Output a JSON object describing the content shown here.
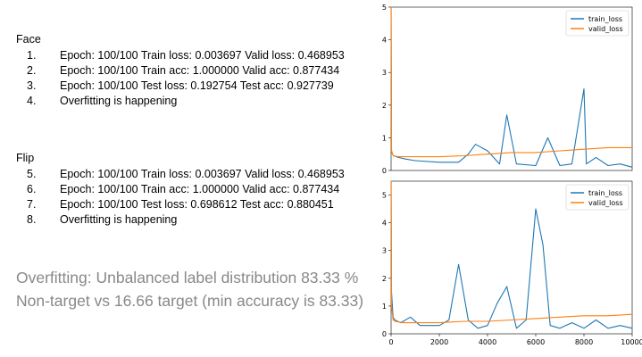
{
  "face": {
    "title": "Face",
    "items": [
      {
        "num": "1.",
        "text": "Epoch: 100/100 Train loss: 0.003697 Valid loss: 0.468953"
      },
      {
        "num": "2.",
        "text": "Epoch: 100/100 Train acc: 1.000000 Valid acc: 0.877434"
      },
      {
        "num": "3.",
        "text": "Epoch: 100/100 Test loss: 0.192754 Test acc: 0.927739"
      },
      {
        "num": "4.",
        "text": "Overfitting is happening"
      }
    ]
  },
  "flip": {
    "title": "Flip",
    "items": [
      {
        "num": "5.",
        "text": "Epoch: 100/100 Train loss: 0.003697 Valid loss: 0.468953"
      },
      {
        "num": "6.",
        "text": "Epoch: 100/100 Train acc: 1.000000 Valid acc: 0.877434"
      },
      {
        "num": "7.",
        "text": "Epoch: 100/100 Test loss: 0.698612 Test acc: 0.880451"
      },
      {
        "num": "8.",
        "text": "Overfitting is happening"
      }
    ]
  },
  "conclusion": "Overfitting: Unbalanced label distribution 83.33 % Non-target vs 16.66 target (min accuracy is 83.33)",
  "chart_data": [
    {
      "type": "line",
      "title": "",
      "xlabel": "",
      "ylabel": "",
      "xlim": [
        0,
        10000
      ],
      "ylim": [
        0,
        5
      ],
      "yticks": [
        0,
        1,
        2,
        3,
        4,
        5
      ],
      "xticks": [],
      "legend": "top-right",
      "grid": false,
      "series": [
        {
          "name": "train_loss",
          "color": "#1f77b4",
          "x": [
            0,
            20,
            60,
            100,
            300,
            600,
            1000,
            2000,
            2800,
            3200,
            3500,
            4000,
            4500,
            4800,
            5200,
            6000,
            6500,
            7000,
            7500,
            8000,
            8100,
            8500,
            9000,
            9500,
            10000
          ],
          "y": [
            5.0,
            0.6,
            0.5,
            0.45,
            0.4,
            0.35,
            0.3,
            0.25,
            0.25,
            0.5,
            0.8,
            0.6,
            0.2,
            1.7,
            0.2,
            0.15,
            1.0,
            0.15,
            0.2,
            2.5,
            0.2,
            0.4,
            0.15,
            0.2,
            0.1
          ]
        },
        {
          "name": "valid_loss",
          "color": "#ff7f0e",
          "x": [
            0,
            20,
            60,
            100,
            300,
            600,
            1000,
            2000,
            3000,
            4000,
            5000,
            6000,
            7000,
            8000,
            9000,
            10000
          ],
          "y": [
            5.0,
            0.6,
            0.5,
            0.45,
            0.42,
            0.42,
            0.42,
            0.42,
            0.45,
            0.5,
            0.55,
            0.55,
            0.6,
            0.65,
            0.7,
            0.7
          ]
        }
      ]
    },
    {
      "type": "line",
      "title": "",
      "xlabel": "",
      "ylabel": "",
      "xlim": [
        0,
        10000
      ],
      "ylim": [
        0,
        5.5
      ],
      "yticks": [
        0,
        1,
        2,
        3,
        4,
        5
      ],
      "xticks": [
        0,
        2000,
        4000,
        6000,
        8000,
        10000
      ],
      "legend": "top-right",
      "grid": false,
      "series": [
        {
          "name": "train_loss",
          "color": "#1f77b4",
          "x": [
            0,
            20,
            80,
            150,
            400,
            800,
            1200,
            2000,
            2400,
            2800,
            3200,
            3600,
            4000,
            4400,
            4800,
            5200,
            5600,
            6000,
            6300,
            6600,
            7000,
            7500,
            8000,
            8500,
            9000,
            9500,
            10000
          ],
          "y": [
            5.5,
            1.5,
            0.6,
            0.5,
            0.4,
            0.6,
            0.3,
            0.3,
            0.5,
            2.5,
            0.5,
            0.2,
            0.3,
            1.1,
            1.7,
            0.2,
            0.5,
            4.5,
            3.2,
            0.3,
            0.2,
            0.4,
            0.2,
            0.5,
            0.2,
            0.3,
            0.2
          ]
        },
        {
          "name": "valid_loss",
          "color": "#ff7f0e",
          "x": [
            0,
            20,
            80,
            150,
            500,
            1000,
            2000,
            3000,
            4000,
            5000,
            6000,
            7000,
            8000,
            9000,
            10000
          ],
          "y": [
            5.5,
            1.0,
            0.5,
            0.45,
            0.4,
            0.4,
            0.4,
            0.45,
            0.45,
            0.5,
            0.55,
            0.6,
            0.65,
            0.65,
            0.7
          ]
        }
      ]
    }
  ]
}
